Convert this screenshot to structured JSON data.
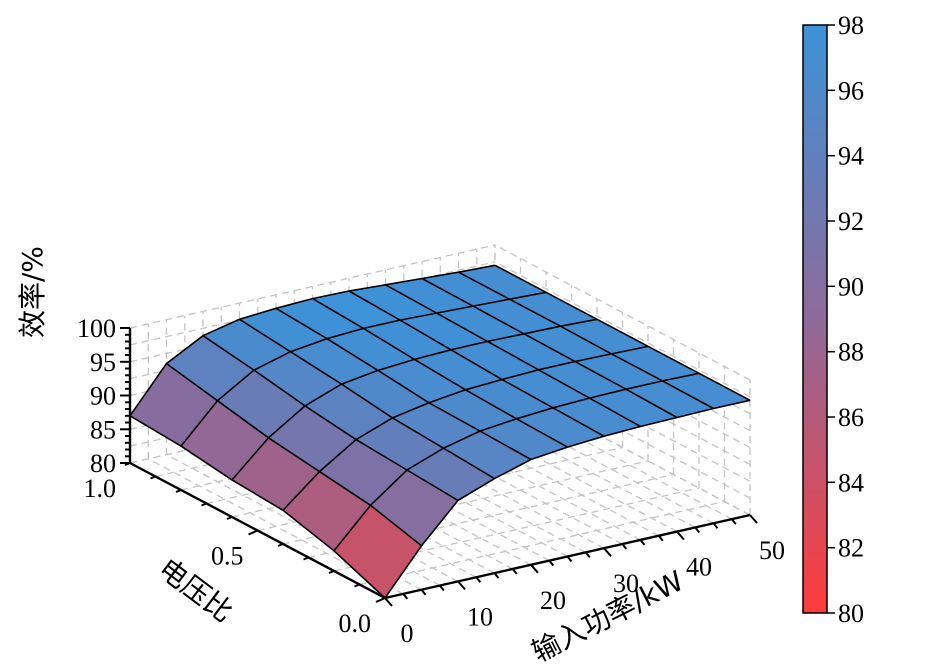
{
  "chart_data": {
    "type": "surface",
    "x": {
      "label": "输入功率/kW",
      "ticks": [
        0,
        10,
        20,
        30,
        40,
        50
      ],
      "tick_labels": [
        "0",
        "10",
        "20",
        "30",
        "40",
        "50"
      ],
      "range": [
        0,
        50
      ]
    },
    "y": {
      "label": "电压比",
      "ticks": [
        0.0,
        0.5,
        1.0
      ],
      "tick_labels": [
        "0.0",
        "0.5",
        "1.0"
      ],
      "range": [
        0,
        1
      ]
    },
    "z": {
      "label": "效率/%",
      "ticks": [
        80,
        85,
        90,
        95,
        100
      ],
      "tick_labels": [
        "80",
        "85",
        "90",
        "95",
        "100"
      ],
      "range": [
        80,
        100
      ]
    },
    "x_grid": [
      0,
      5,
      10,
      15,
      20,
      25,
      30,
      35,
      40,
      45,
      50
    ],
    "y_grid": [
      0,
      0.2,
      0.4,
      0.6,
      0.8,
      1.0
    ],
    "z_values": [
      [
        80.0,
        86.5,
        92.0,
        94.0,
        95.6,
        96.2,
        96.6,
        96.8,
        96.9,
        97.0,
        97.0
      ],
      [
        83.0,
        88.5,
        92.5,
        94.5,
        95.8,
        96.4,
        96.8,
        97.0,
        97.1,
        97.1,
        97.0
      ],
      [
        85.0,
        89.5,
        93.0,
        95.0,
        96.0,
        96.7,
        97.0,
        97.2,
        97.2,
        97.1,
        97.0
      ],
      [
        85.5,
        90.5,
        94.0,
        96.0,
        96.8,
        97.2,
        97.4,
        97.4,
        97.3,
        97.2,
        97.0
      ],
      [
        86.5,
        92.0,
        95.3,
        96.8,
        97.5,
        97.8,
        97.8,
        97.6,
        97.4,
        97.2,
        97.0
      ],
      [
        87.0,
        93.5,
        96.4,
        97.6,
        98.0,
        98.2,
        98.1,
        97.8,
        97.5,
        97.2,
        97.0
      ]
    ],
    "colorbar": {
      "range": [
        80,
        98
      ],
      "ticks": [
        80,
        82,
        84,
        86,
        88,
        90,
        92,
        94,
        96,
        98
      ],
      "tick_labels": [
        "80",
        "82",
        "84",
        "86",
        "88",
        "90",
        "92",
        "94",
        "96",
        "98"
      ],
      "color_low": "#ff3b3b",
      "color_mid": "#8e6a9a",
      "color_high": "#3d92d8"
    },
    "grid": true,
    "legend": "right-colorbar"
  }
}
